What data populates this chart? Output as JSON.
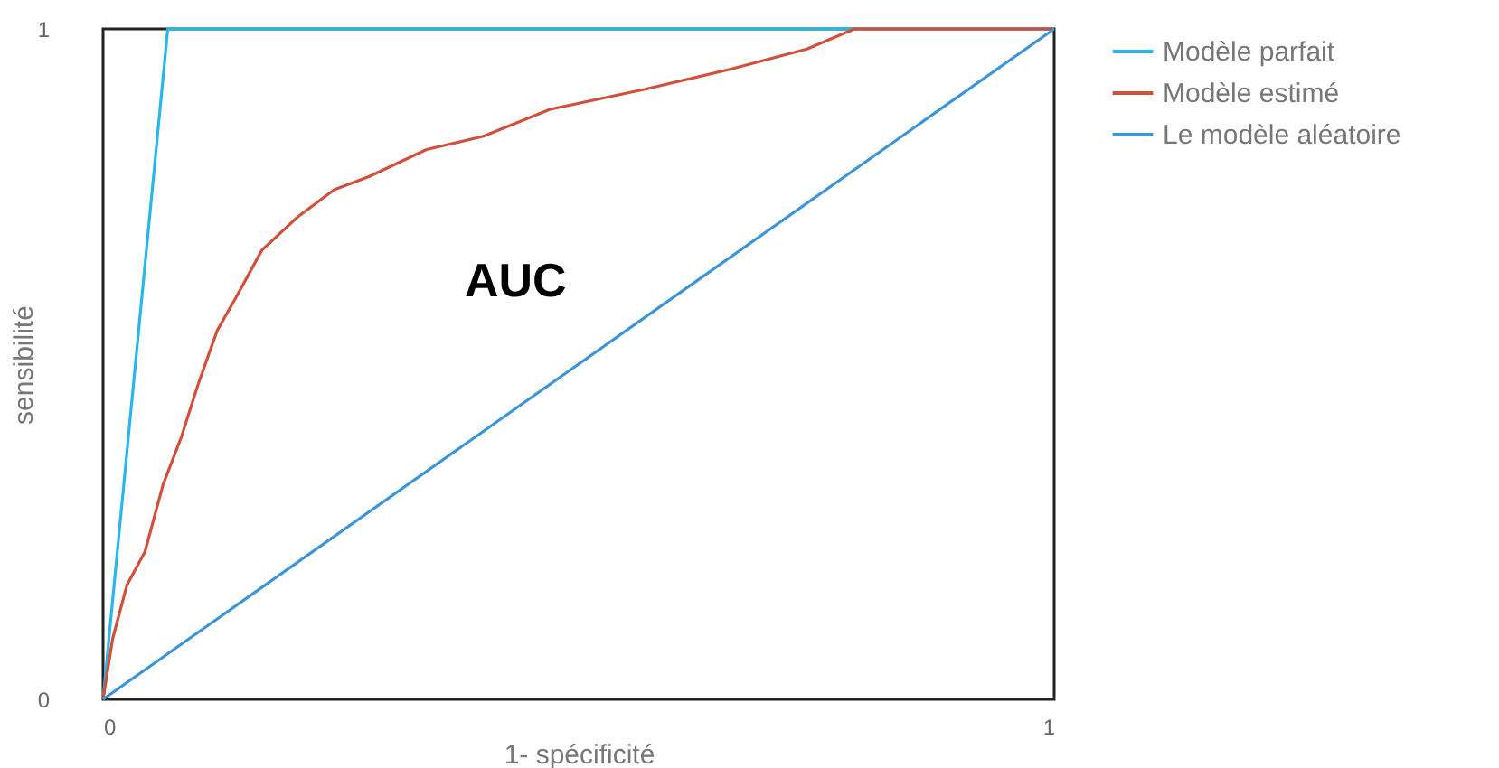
{
  "chart_data": {
    "type": "line",
    "xlabel": "1- spécificité",
    "ylabel": "sensibilité",
    "xlim": [
      0,
      1
    ],
    "ylim": [
      0,
      1
    ],
    "xticks": [
      0,
      1
    ],
    "yticks": [
      0,
      1
    ],
    "grid": false,
    "legend": "right",
    "marker": "none",
    "line_style": "solid",
    "annotations": [
      "AUC"
    ],
    "series": [
      {
        "name": "Modèle parfait",
        "color": "#29b6ec",
        "x": [
          0,
          0.068,
          1
        ],
        "values": [
          0,
          1,
          1
        ]
      },
      {
        "name": "Modèle estimé",
        "color": "#d0503c",
        "x": [
          0,
          0.01,
          0.025,
          0.044,
          0.063,
          0.082,
          0.1,
          0.12,
          0.14,
          0.167,
          0.205,
          0.243,
          0.28,
          0.34,
          0.4,
          0.47,
          0.57,
          0.66,
          0.74,
          0.79,
          1
        ],
        "values": [
          0,
          0.09,
          0.17,
          0.22,
          0.32,
          0.39,
          0.47,
          0.55,
          0.6,
          0.67,
          0.72,
          0.76,
          0.78,
          0.82,
          0.84,
          0.88,
          0.91,
          0.94,
          0.97,
          1,
          1
        ]
      },
      {
        "name": "Le modèle aléatoire",
        "color": "#3d95d8",
        "x": [
          0,
          1
        ],
        "values": [
          0,
          1
        ]
      }
    ]
  }
}
